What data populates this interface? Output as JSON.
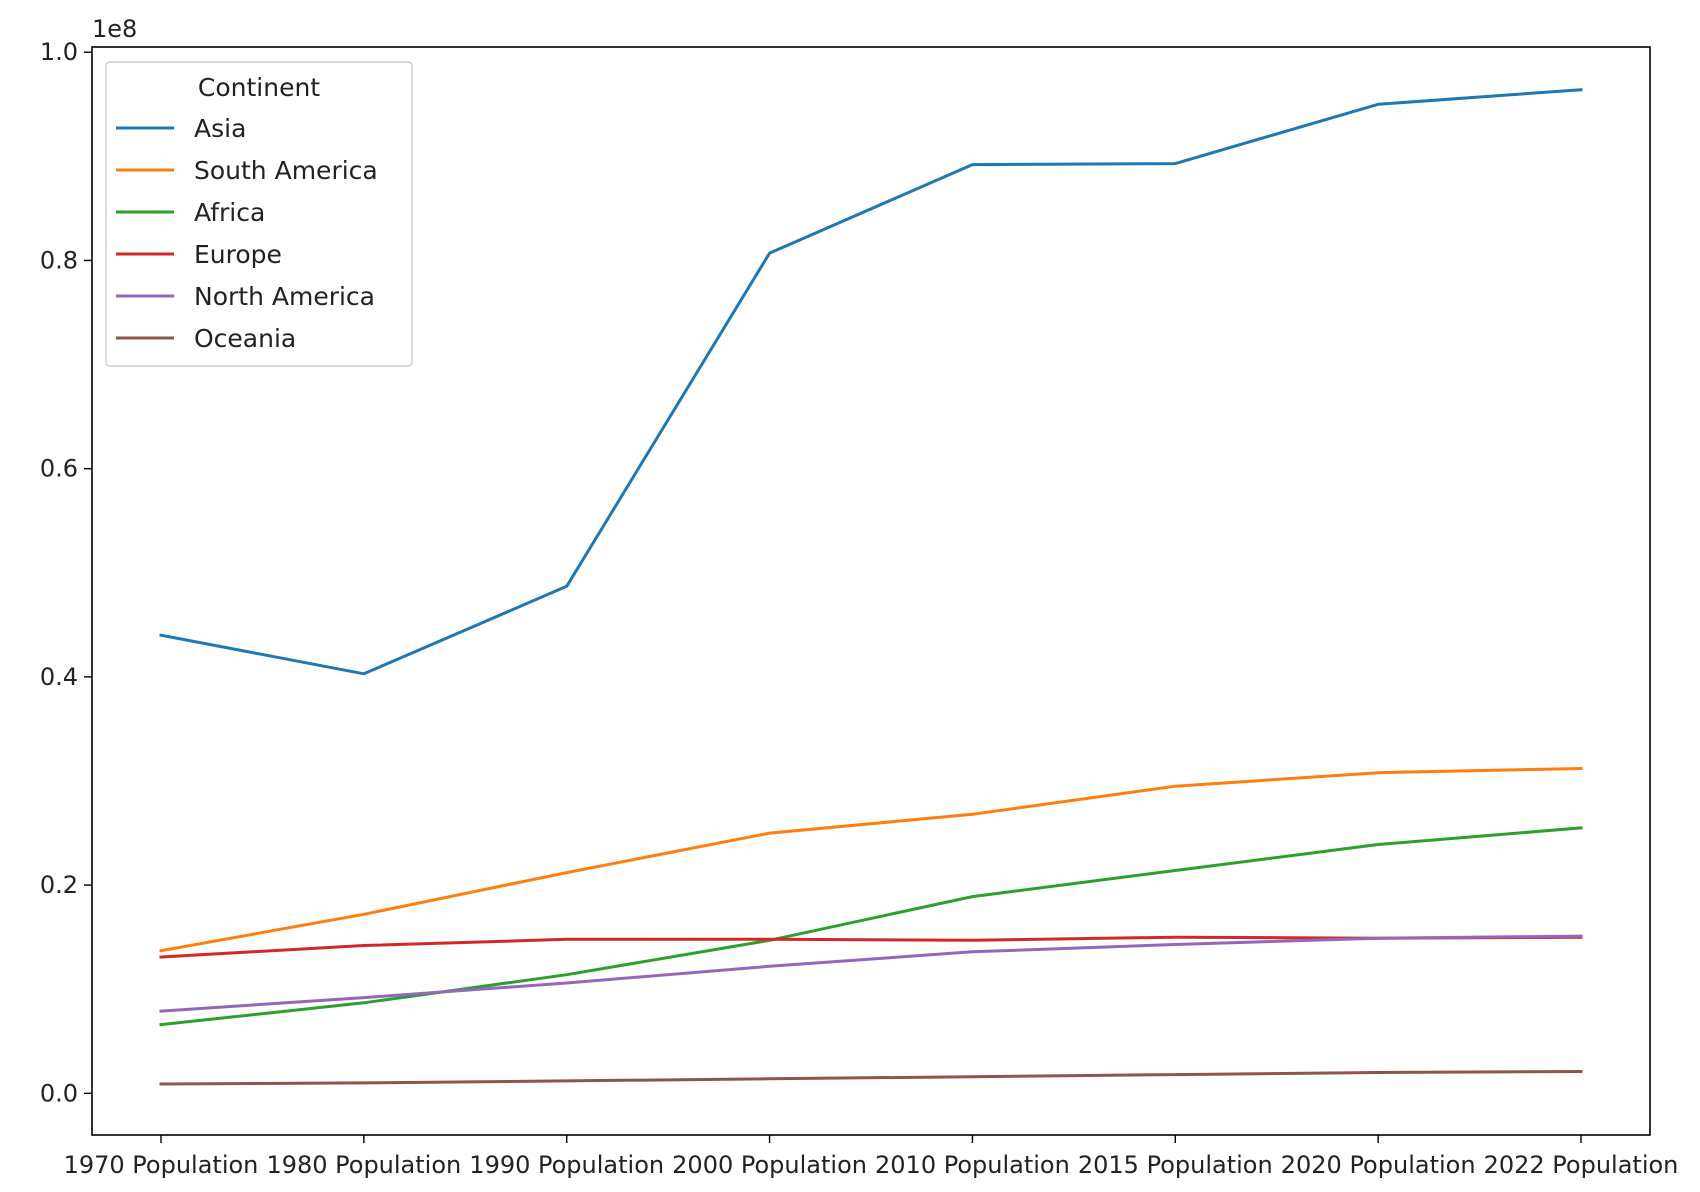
{
  "chart_data": {
    "type": "line",
    "title": "",
    "xlabel": "",
    "ylabel": "",
    "y_offset_text": "1e8",
    "categories": [
      "1970 Population",
      "1980 Population",
      "1990 Population",
      "2000 Population",
      "2010 Population",
      "2015 Population",
      "2020 Population",
      "2022 Population"
    ],
    "ylim": [
      -0.04,
      1.005
    ],
    "y_ticks": [
      0.0,
      0.2,
      0.4,
      0.6,
      0.8,
      1.0
    ],
    "y_tick_labels": [
      "0.0",
      "0.2",
      "0.4",
      "0.6",
      "0.8",
      "1.0"
    ],
    "grid": false,
    "legend": {
      "title": "Continent",
      "placement": "top-left"
    },
    "series": [
      {
        "name": "Asia",
        "color": "#1f77b4",
        "values": [
          0.44,
          0.403,
          0.487,
          0.807,
          0.892,
          0.893,
          0.95,
          0.964
        ]
      },
      {
        "name": "South America",
        "color": "#ff7f0e",
        "values": [
          0.137,
          0.172,
          0.212,
          0.25,
          0.268,
          0.295,
          0.308,
          0.312
        ]
      },
      {
        "name": "Africa",
        "color": "#2ca02c",
        "values": [
          0.066,
          0.087,
          0.114,
          0.147,
          0.189,
          0.214,
          0.239,
          0.255
        ]
      },
      {
        "name": "Europe",
        "color": "#d62728",
        "values": [
          0.131,
          0.142,
          0.148,
          0.148,
          0.147,
          0.15,
          0.149,
          0.15
        ]
      },
      {
        "name": "North America",
        "color": "#9467bd",
        "values": [
          0.079,
          0.092,
          0.106,
          0.122,
          0.136,
          0.143,
          0.149,
          0.151
        ]
      },
      {
        "name": "Oceania",
        "color": "#8c564b",
        "values": [
          0.009,
          0.01,
          0.012,
          0.014,
          0.016,
          0.018,
          0.02,
          0.021
        ]
      }
    ]
  }
}
